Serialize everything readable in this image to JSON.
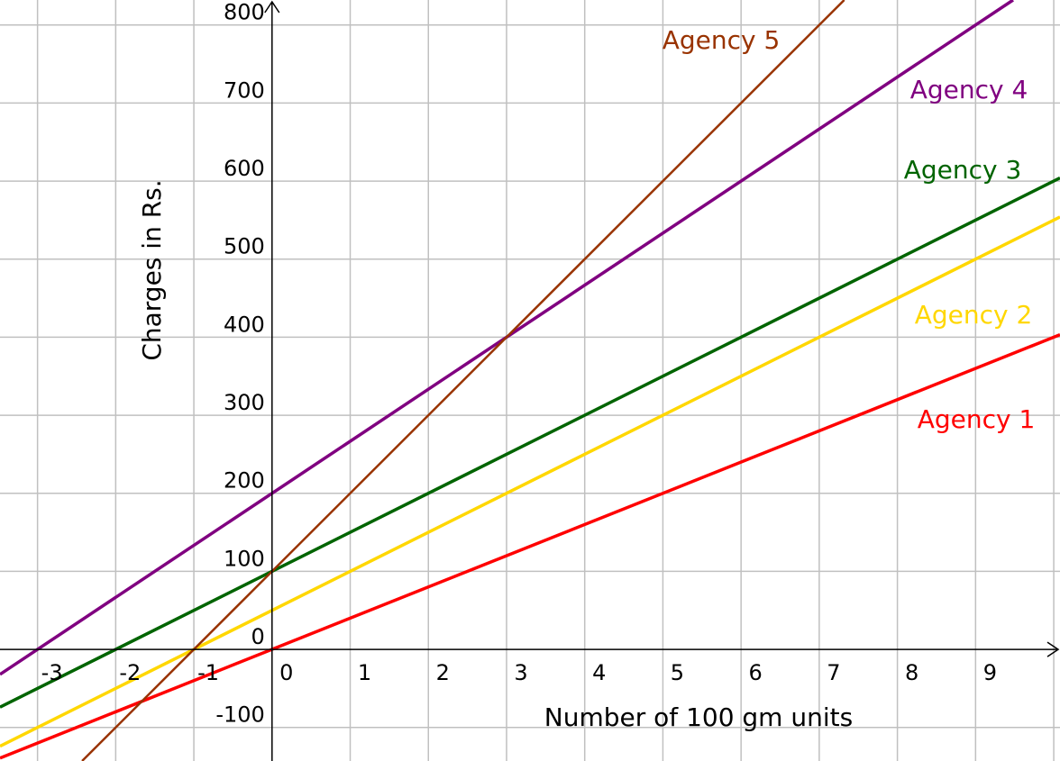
{
  "chart_data": {
    "type": "line",
    "title": "",
    "xlabel": "Number of 100 gm units",
    "ylabel": "Charges in Rs.",
    "xlim": [
      -3.48,
      10.08
    ],
    "ylim": [
      -143,
      832
    ],
    "grid": true,
    "x_ticks": [
      -3,
      -2,
      -1,
      0,
      1,
      2,
      3,
      4,
      5,
      6,
      7,
      8,
      9
    ],
    "x_tick_labels": [
      "-3",
      "-2",
      "-1",
      "0",
      "1",
      "2",
      "3",
      "4",
      "5",
      "6",
      "7",
      "8",
      "9"
    ],
    "y_ticks": [
      -100,
      0,
      100,
      200,
      300,
      400,
      500,
      600,
      700,
      800
    ],
    "y_tick_labels": [
      "-100",
      "0",
      "100",
      "200",
      "300",
      "400",
      "500",
      "600",
      "700",
      "800"
    ],
    "series": [
      {
        "name": "Agency 1",
        "color": "#ff0000",
        "intercept": 0,
        "slope": 40,
        "x": [
          -4,
          11
        ],
        "y": [
          -160,
          440
        ]
      },
      {
        "name": "Agency 2",
        "color": "#ffd700",
        "intercept": 50,
        "slope": 50,
        "x": [
          -4,
          11
        ],
        "y": [
          -150,
          600
        ]
      },
      {
        "name": "Agency 3",
        "color": "#006400",
        "intercept": 100,
        "slope": 50,
        "x": [
          -4,
          11
        ],
        "y": [
          -100,
          650
        ]
      },
      {
        "name": "Agency 4",
        "color": "#800080",
        "intercept": 200,
        "slope": 66.67,
        "x": [
          -4,
          11
        ],
        "y": [
          -66.67,
          933.33
        ]
      },
      {
        "name": "Agency 5",
        "color": "#993300",
        "intercept": 100,
        "slope": 100,
        "x": [
          -4,
          11
        ],
        "y": [
          -300,
          1200
        ]
      }
    ]
  }
}
